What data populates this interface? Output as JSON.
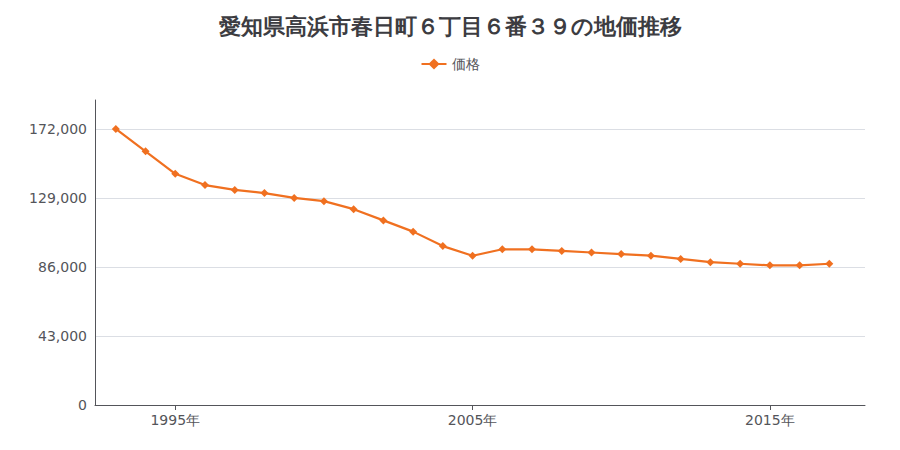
{
  "chart_data": {
    "type": "line",
    "title": "愛知県高浜市春日町６丁目６番３９の地価推移",
    "series": [
      {
        "name": "価格",
        "color": "#f07020",
        "marker": "diamond",
        "values": [
          172000,
          158000,
          144000,
          137000,
          134000,
          132000,
          129000,
          127000,
          122000,
          115000,
          108000,
          99000,
          93000,
          97000,
          97000,
          96000,
          95000,
          94000,
          93000,
          91000,
          89000,
          88000,
          87000,
          87000,
          88000
        ]
      }
    ],
    "x": [
      1993,
      1994,
      1995,
      1996,
      1997,
      1998,
      1999,
      2000,
      2001,
      2002,
      2003,
      2004,
      2005,
      2006,
      2007,
      2008,
      2009,
      2010,
      2011,
      2012,
      2013,
      2014,
      2015,
      2016,
      2017
    ],
    "xlim": [
      1992.3,
      2018.2
    ],
    "xticks": [
      {
        "value": 1995,
        "label": "1995年"
      },
      {
        "value": 2005,
        "label": "2005年"
      },
      {
        "value": 2015,
        "label": "2015年"
      }
    ],
    "ylim": [
      0,
      190000
    ],
    "yticks": [
      0,
      {
        "value": 43000,
        "label": "43,000"
      },
      {
        "value": 86000,
        "label": "86,000"
      },
      {
        "value": 129000,
        "label": "129,000"
      },
      {
        "value": 172000,
        "label": "172,000"
      }
    ],
    "grid": true,
    "legend": "top"
  }
}
